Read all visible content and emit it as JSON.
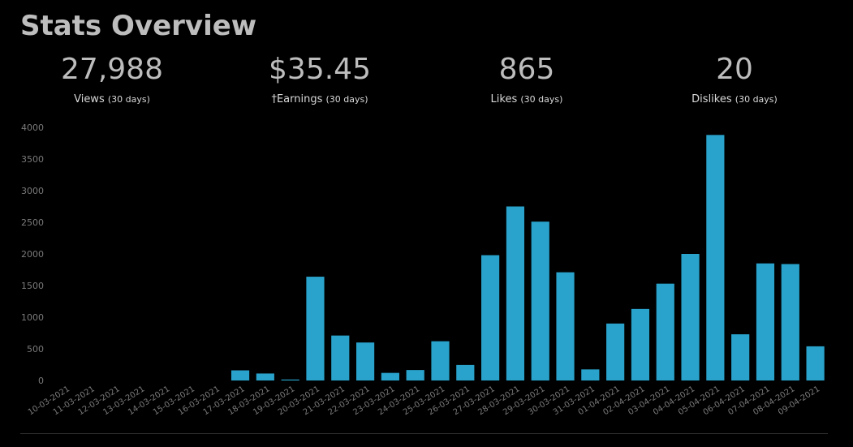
{
  "header": {
    "title": "Stats Overview"
  },
  "stats": [
    {
      "value": "27,988",
      "label": "Views",
      "period": "(30 days)"
    },
    {
      "value": "$35.45",
      "label": "†Earnings",
      "period": "(30 days)"
    },
    {
      "value": "865",
      "label": "Likes",
      "period": "(30 days)"
    },
    {
      "value": "20",
      "label": "Dislikes",
      "period": "(30 days)"
    }
  ],
  "colors": {
    "bar": "#29a3cc",
    "background": "#000000",
    "axis_text": "#7a7a7a"
  },
  "chart_data": {
    "type": "bar",
    "categories": [
      "10-03-2021",
      "11-03-2021",
      "12-03-2021",
      "13-03-2021",
      "14-03-2021",
      "15-03-2021",
      "16-03-2021",
      "17-03-2021",
      "18-03-2021",
      "19-03-2021",
      "20-03-2021",
      "21-03-2021",
      "22-03-2021",
      "23-03-2021",
      "24-03-2021",
      "25-03-2021",
      "26-03-2021",
      "27-03-2021",
      "28-03-2021",
      "29-03-2021",
      "30-03-2021",
      "31-03-2021",
      "01-04-2021",
      "02-04-2021",
      "03-04-2021",
      "04-04-2021",
      "05-04-2021",
      "06-04-2021",
      "07-04-2021",
      "08-04-2021",
      "09-04-2021"
    ],
    "values": [
      0,
      0,
      0,
      0,
      0,
      0,
      0,
      160,
      110,
      15,
      1640,
      710,
      600,
      120,
      165,
      620,
      245,
      1980,
      2750,
      2510,
      1710,
      175,
      900,
      1130,
      1530,
      2000,
      3880,
      730,
      1850,
      1840,
      540
    ],
    "yticks": [
      "0",
      "500",
      "1000",
      "1500",
      "2000",
      "2500",
      "3000",
      "3500",
      "4000"
    ],
    "ylim": [
      0,
      4000
    ],
    "grid": false,
    "legend": "none"
  }
}
